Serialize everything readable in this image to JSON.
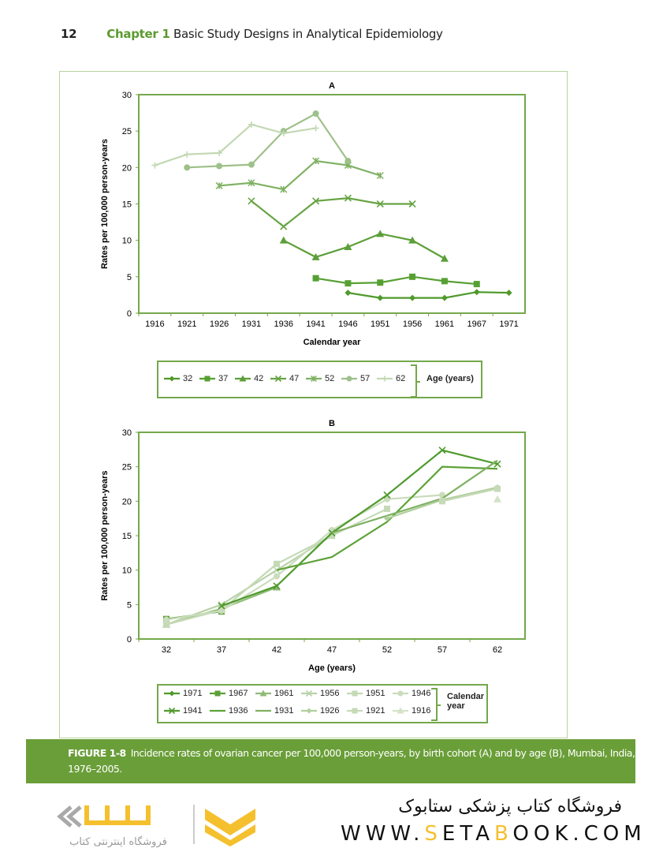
{
  "header": {
    "page_number": "12",
    "chapter_label": "Chapter 1",
    "chapter_title": "Basic Study Designs in Analytical Epidemiology"
  },
  "colors": {
    "accent": "#6a9e38",
    "border": "#74a84a",
    "series_dark": "#4f9a2c",
    "series_light": "#cfe0c2"
  },
  "chart_data": [
    {
      "type": "line",
      "title": "A",
      "xlabel": "Calendar year",
      "ylabel": "Rates per 100,000 person-years",
      "ylim": [
        0,
        30
      ],
      "yticks": [
        0,
        5,
        10,
        15,
        20,
        25,
        30
      ],
      "categories": [
        "1916",
        "1921",
        "1926",
        "1931",
        "1936",
        "1941",
        "1946",
        "1951",
        "1956",
        "1961",
        "1967",
        "1971"
      ],
      "legend_title": "Age (years)",
      "legend_placement": "bottom",
      "grid": false,
      "series": [
        {
          "name": "32",
          "marker": "diamond",
          "color": "#4f9a2c",
          "points": [
            [
              "1946",
              2.8
            ],
            [
              "1951",
              2.1
            ],
            [
              "1956",
              2.1
            ],
            [
              "1961",
              2.1
            ],
            [
              "1967",
              2.9
            ],
            [
              "1971",
              2.8
            ]
          ]
        },
        {
          "name": "37",
          "marker": "square",
          "color": "#56a033",
          "points": [
            [
              "1941",
              4.8
            ],
            [
              "1946",
              4.1
            ],
            [
              "1951",
              4.2
            ],
            [
              "1956",
              5.0
            ],
            [
              "1961",
              4.4
            ],
            [
              "1967",
              4.0
            ]
          ]
        },
        {
          "name": "42",
          "marker": "triangle",
          "color": "#5c9f38",
          "points": [
            [
              "1936",
              10.0
            ],
            [
              "1941",
              7.7
            ],
            [
              "1946",
              9.1
            ],
            [
              "1951",
              10.9
            ],
            [
              "1956",
              10.0
            ],
            [
              "1961",
              7.5
            ]
          ]
        },
        {
          "name": "47",
          "marker": "x",
          "color": "#66a444",
          "points": [
            [
              "1931",
              15.4
            ],
            [
              "1936",
              11.9
            ],
            [
              "1941",
              15.4
            ],
            [
              "1946",
              15.8
            ],
            [
              "1951",
              15.0
            ],
            [
              "1956",
              15.0
            ]
          ]
        },
        {
          "name": "52",
          "marker": "star",
          "color": "#7fb163",
          "points": [
            [
              "1926",
              17.5
            ],
            [
              "1931",
              17.9
            ],
            [
              "1936",
              17.0
            ],
            [
              "1941",
              20.9
            ],
            [
              "1946",
              20.3
            ],
            [
              "1951",
              18.9
            ]
          ]
        },
        {
          "name": "57",
          "marker": "circle",
          "color": "#9ec08a",
          "points": [
            [
              "1921",
              20.0
            ],
            [
              "1926",
              20.2
            ],
            [
              "1931",
              20.4
            ],
            [
              "1936",
              25.0
            ],
            [
              "1941",
              27.4
            ],
            [
              "1946",
              20.9
            ]
          ]
        },
        {
          "name": "62",
          "marker": "plus",
          "color": "#c2d8b3",
          "points": [
            [
              "1916",
              20.3
            ],
            [
              "1921",
              21.8
            ],
            [
              "1926",
              22.0
            ],
            [
              "1931",
              25.9
            ],
            [
              "1936",
              24.7
            ],
            [
              "1941",
              25.4
            ]
          ]
        }
      ]
    },
    {
      "type": "line",
      "title": "B",
      "xlabel": "Age (years)",
      "ylabel": "Rates per 100,000 person-years",
      "ylim": [
        0,
        30
      ],
      "yticks": [
        0,
        5,
        10,
        15,
        20,
        25,
        30
      ],
      "categories": [
        "32",
        "37",
        "42",
        "47",
        "52",
        "57",
        "62"
      ],
      "legend_title": "Calendar year",
      "legend_placement": "bottom",
      "grid": false,
      "series": [
        {
          "name": "1971",
          "marker": "diamond",
          "color": "#4f9a2c",
          "points": [
            [
              "32",
              2.8
            ]
          ]
        },
        {
          "name": "1967",
          "marker": "square",
          "color": "#5aa036",
          "points": [
            [
              "32",
              2.9
            ],
            [
              "37",
              4.0
            ]
          ]
        },
        {
          "name": "1961",
          "marker": "triangle",
          "color": "#8fbb76",
          "points": [
            [
              "32",
              2.1
            ],
            [
              "37",
              4.4
            ],
            [
              "42",
              7.5
            ]
          ]
        },
        {
          "name": "1956",
          "marker": "x",
          "color": "#b9d3a8",
          "points": [
            [
              "32",
              2.1
            ],
            [
              "37",
              5.0
            ],
            [
              "42",
              10.0
            ],
            [
              "47",
              15.0
            ]
          ]
        },
        {
          "name": "1951",
          "marker": "square",
          "color": "#c4d9b5",
          "points": [
            [
              "32",
              2.1
            ],
            [
              "37",
              4.2
            ],
            [
              "42",
              10.9
            ],
            [
              "47",
              15.0
            ],
            [
              "52",
              18.9
            ]
          ]
        },
        {
          "name": "1946",
          "marker": "circle",
          "color": "#cadcbc",
          "points": [
            [
              "32",
              2.8
            ],
            [
              "37",
              4.1
            ],
            [
              "42",
              9.1
            ],
            [
              "47",
              15.8
            ],
            [
              "52",
              20.3
            ],
            [
              "57",
              20.9
            ]
          ]
        },
        {
          "name": "1941",
          "marker": "x",
          "color": "#4f9a2c",
          "points": [
            [
              "37",
              4.8
            ],
            [
              "42",
              7.7
            ],
            [
              "47",
              15.4
            ],
            [
              "52",
              20.9
            ],
            [
              "57",
              27.4
            ],
            [
              "62",
              25.4
            ]
          ]
        },
        {
          "name": "1936",
          "marker": "none",
          "color": "#5ea33a",
          "points": [
            [
              "42",
              10.0
            ],
            [
              "47",
              11.9
            ],
            [
              "52",
              17.0
            ],
            [
              "57",
              25.0
            ],
            [
              "62",
              24.7
            ]
          ]
        },
        {
          "name": "1931",
          "marker": "none",
          "color": "#7fb163",
          "points": [
            [
              "47",
              15.4
            ],
            [
              "52",
              17.9
            ],
            [
              "57",
              20.4
            ],
            [
              "62",
              25.9
            ]
          ]
        },
        {
          "name": "1926",
          "marker": "diamond",
          "color": "#b2cf9d",
          "points": [
            [
              "52",
              17.5
            ],
            [
              "57",
              20.2
            ],
            [
              "62",
              22.0
            ]
          ]
        },
        {
          "name": "1921",
          "marker": "square",
          "color": "#c6dab8",
          "points": [
            [
              "57",
              20.0
            ],
            [
              "62",
              21.8
            ]
          ]
        },
        {
          "name": "1916",
          "marker": "triangle",
          "color": "#d3e3c7",
          "points": [
            [
              "62",
              20.3
            ]
          ]
        }
      ]
    }
  ],
  "caption": {
    "label": "FIGURE 1-8",
    "text": "Incidence rates of ovarian cancer per 100,000 person-years, by birth cohort (A) and by age (B), Mumbai, India, 1976–2005."
  },
  "footer": {
    "store_name_fa": "فروشگاه کتاب پزشکی ستابوک",
    "url_parts": [
      "WWW.",
      "S",
      "ETA",
      "B",
      "OOK.COM"
    ],
    "logo_text_fa": "فروشگاه اینترنتی کتاب"
  }
}
